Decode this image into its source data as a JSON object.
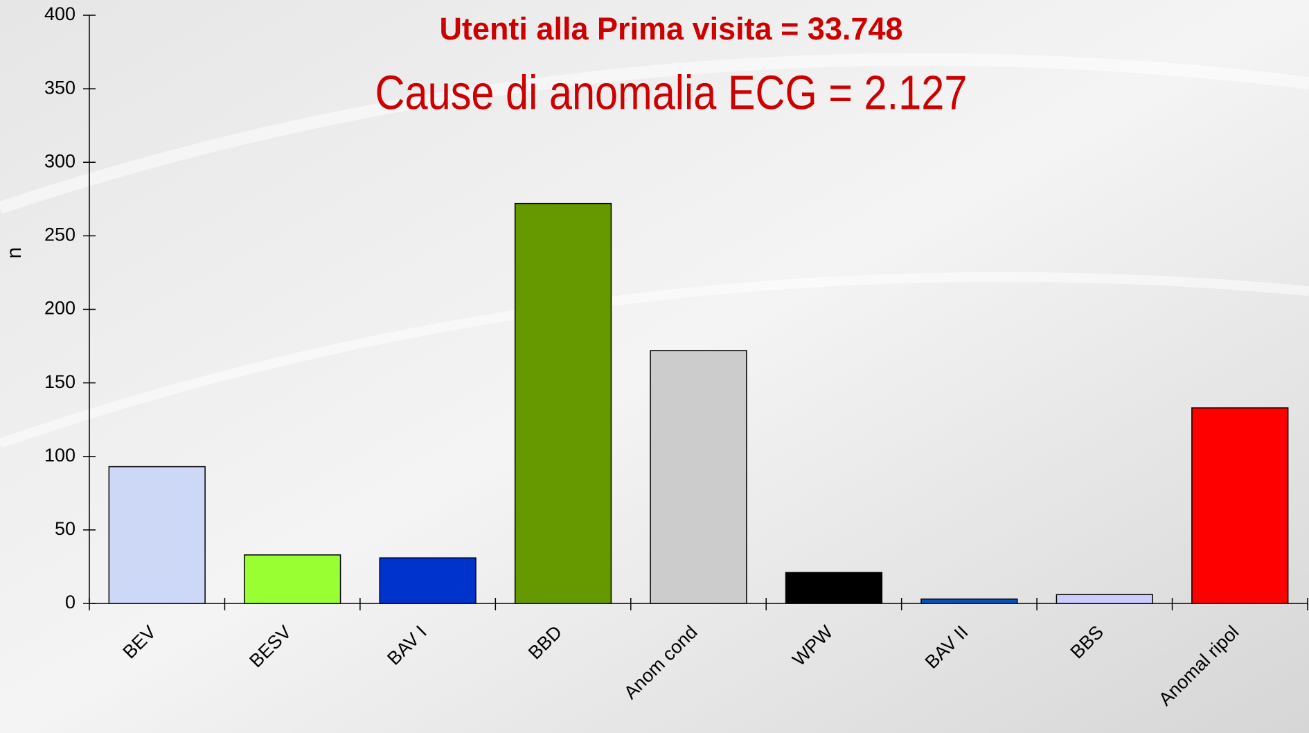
{
  "chart_data": {
    "type": "bar",
    "title": "Cause di anomalia ECG = 2.127",
    "subtitle": "Utenti alla Prima visita = 33.748",
    "y_label": "n",
    "categories": [
      "BEV",
      "BESV",
      "BAV I",
      "BBD",
      "Anom cond",
      "WPW",
      "BAV II",
      "BBS",
      "Anomal ripol"
    ],
    "values": [
      93,
      33,
      31,
      272,
      172,
      21,
      3,
      6,
      133
    ],
    "colors": [
      "#ccd8f5",
      "#99ff33",
      "#0033cc",
      "#669900",
      "#cccccc",
      "#000000",
      "#0055bb",
      "#ccccff",
      "#ff0000"
    ],
    "ylim": [
      0,
      400
    ],
    "yticks": [
      0,
      50,
      100,
      150,
      200,
      250,
      300,
      350,
      400
    ],
    "grid": false
  }
}
